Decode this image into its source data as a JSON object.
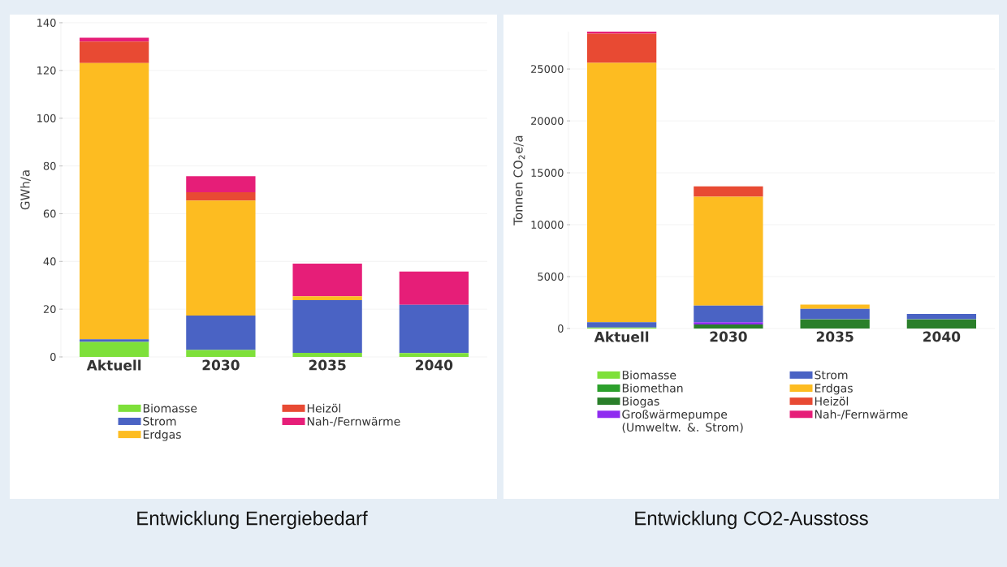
{
  "chart_data": [
    {
      "type": "bar",
      "stacked": true,
      "title": "Entwicklung Energiebedarf",
      "ylabel": "GWh/a",
      "categories": [
        "Aktuell",
        "2030",
        "2035",
        "2040"
      ],
      "ylim": [
        0,
        140
      ],
      "yticks": [
        0,
        20,
        40,
        60,
        80,
        100,
        120,
        140
      ],
      "grid": "y",
      "legend": "bottom",
      "series": [
        {
          "name": "Biomasse",
          "color": "#7ee03a",
          "values": [
            6.3,
            2.9,
            1.7,
            1.6
          ]
        },
        {
          "name": "Strom",
          "color": "#4a63c4",
          "values": [
            1.1,
            14.4,
            22.1,
            20.2
          ]
        },
        {
          "name": "Erdgas",
          "color": "#fdbc21",
          "values": [
            115.7,
            48.2,
            1.6,
            0
          ]
        },
        {
          "name": "Heizöl",
          "color": "#e84a33",
          "values": [
            9,
            3.5,
            0,
            0
          ]
        },
        {
          "name": "Nah-/Fernwärme",
          "color": "#e61e78",
          "values": [
            1.6,
            6.7,
            13.7,
            14
          ]
        }
      ]
    },
    {
      "type": "bar",
      "stacked": true,
      "title": "Entwicklung CO2-Ausstoss",
      "ylabel": "Tonnen CO$_{2}$e/a",
      "categories": [
        "Aktuell",
        "2030",
        "2035",
        "2040"
      ],
      "ylim": [
        0,
        28600
      ],
      "yticks": [
        0,
        5000,
        10000,
        15000,
        20000,
        25000
      ],
      "grid": "y",
      "legend": "bottom",
      "series": [
        {
          "name": "Biomasse",
          "color": "#7ee03a",
          "values": [
            100,
            0,
            0,
            0
          ]
        },
        {
          "name": "Biomethan",
          "color": "#2ca02c",
          "values": [
            0,
            0,
            0,
            0
          ]
        },
        {
          "name": "Biogas",
          "color": "#2a7f2a",
          "values": [
            0,
            400,
            900,
            900
          ]
        },
        {
          "name": "Großwärmepumpe (Umweltw. &. Strom)",
          "color": "#8f2cf0",
          "values": [
            0,
            200,
            0,
            0
          ]
        },
        {
          "name": "Strom",
          "color": "#4a63c4",
          "values": [
            500,
            1600,
            1000,
            500
          ]
        },
        {
          "name": "Erdgas",
          "color": "#fdbc21",
          "values": [
            25000,
            10500,
            400,
            0
          ]
        },
        {
          "name": "Heizöl",
          "color": "#e84a33",
          "values": [
            2800,
            1000,
            0,
            0
          ]
        },
        {
          "name": "Nah-/Fernwärme",
          "color": "#e61e78",
          "values": [
            200,
            0,
            0,
            0
          ]
        }
      ]
    }
  ]
}
